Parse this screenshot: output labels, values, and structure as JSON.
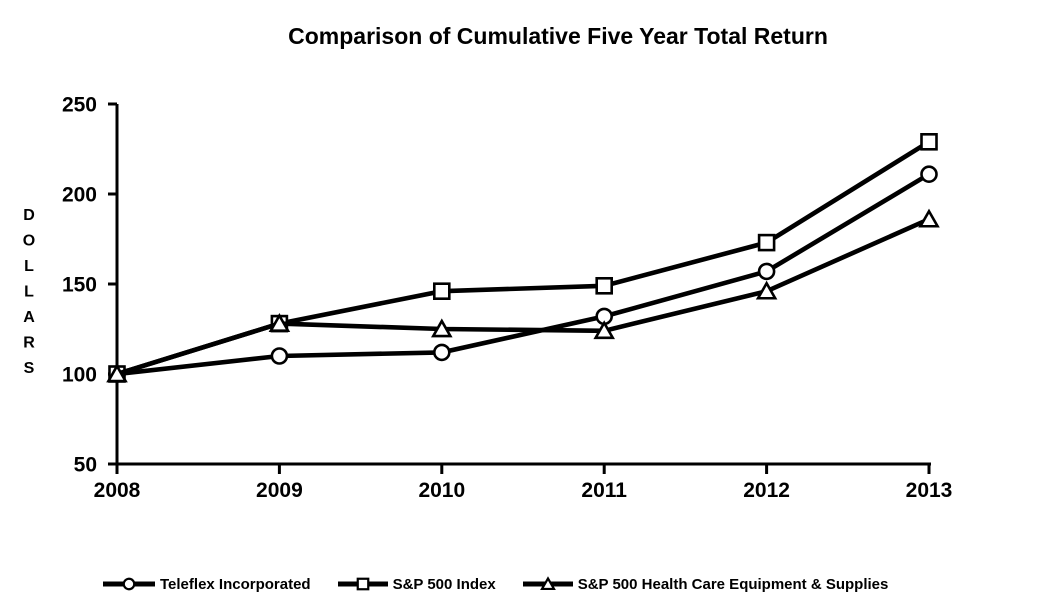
{
  "chart_data": {
    "type": "line",
    "title": "Comparison of Cumulative Five Year Total Return",
    "ylabel": "DOLLARS",
    "xlabel": "",
    "categories": [
      "2008",
      "2009",
      "2010",
      "2011",
      "2012",
      "2013"
    ],
    "yticks": [
      250,
      200,
      150,
      100,
      50
    ],
    "ylim": [
      50,
      250
    ],
    "grid": false,
    "legend_position": "bottom",
    "series": [
      {
        "name": "Teleflex Incorporated",
        "marker": "circle",
        "values": [
          100,
          110,
          112,
          132,
          157,
          211
        ]
      },
      {
        "name": "S&P 500 Index",
        "marker": "square",
        "values": [
          100,
          128,
          146,
          149,
          173,
          229
        ]
      },
      {
        "name": "S&P 500 Health Care Equipment & Supplies",
        "marker": "triangle",
        "values": [
          100,
          128,
          125,
          124,
          146,
          186
        ]
      }
    ],
    "colors": {
      "line": "#000000",
      "marker_fill": "#ffffff",
      "text": "#000000",
      "background": "#ffffff"
    }
  }
}
